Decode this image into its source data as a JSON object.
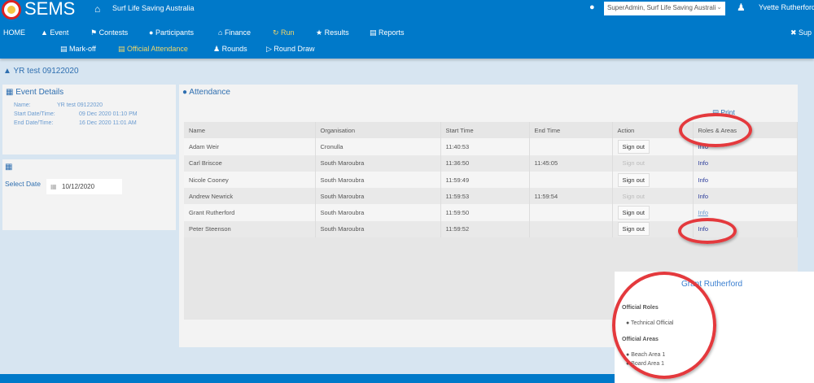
{
  "header": {
    "brand": "SEMS",
    "org": "Surf Life Saving Australia",
    "role_select": "SuperAdmin, Surf Life Saving Australi",
    "user": "Yvette Rutherford",
    "super": "Sup"
  },
  "nav": [
    {
      "label": "HOME"
    },
    {
      "label": "Event"
    },
    {
      "label": "Contests"
    },
    {
      "label": "Participants"
    },
    {
      "label": "Finance"
    },
    {
      "label": "Run"
    },
    {
      "label": "Results"
    },
    {
      "label": "Reports"
    }
  ],
  "subnav": [
    {
      "label": "Mark-off"
    },
    {
      "label": "Official Attendance"
    },
    {
      "label": "Rounds"
    },
    {
      "label": "Round Draw"
    }
  ],
  "page_title": "YR test 09122020",
  "event_details": {
    "title": "Event Details",
    "name_label": "Name:",
    "name": "YR test 09122020",
    "start_label": "Start Date/Time:",
    "start": "09 Dec 2020 01:10 PM",
    "end_label": "End Date/Time:",
    "end": "16 Dec 2020 11:01 AM"
  },
  "date_panel": {
    "label": "Select Date",
    "value": "10/12/2020"
  },
  "attendance": {
    "title": "Attendance",
    "print": "Print",
    "columns": [
      "Name",
      "Organisation",
      "Start Time",
      "End Time",
      "Action",
      "Roles & Areas"
    ],
    "rows": [
      {
        "name": "Adam Weir",
        "org": "Cronulla",
        "start": "11:40:53",
        "end": "",
        "action": "Sign out",
        "info": "Info"
      },
      {
        "name": "Carl Briscoe",
        "org": "South Maroubra",
        "start": "11:36:50",
        "end": "11:45:05",
        "action": "Sign out",
        "info": "Info"
      },
      {
        "name": "Nicole Cooney",
        "org": "South Maroubra",
        "start": "11:59:49",
        "end": "",
        "action": "Sign out",
        "info": "Info"
      },
      {
        "name": "Andrew Newrick",
        "org": "South Maroubra",
        "start": "11:59:53",
        "end": "11:59:54",
        "action": "Sign out",
        "info": "Info"
      },
      {
        "name": "Grant Rutherford",
        "org": "South Maroubra",
        "start": "11:59:50",
        "end": "",
        "action": "Sign out",
        "info": "Info"
      },
      {
        "name": "Peter Steenson",
        "org": "South Maroubra",
        "start": "11:59:52",
        "end": "",
        "action": "Sign out",
        "info": "Info"
      }
    ]
  },
  "popup": {
    "name": "Grant Rutherford",
    "roles_title": "Official Roles",
    "roles": [
      "Technical Official"
    ],
    "areas_title": "Official Areas",
    "areas": [
      "Beach Area 1",
      "Board Area 1"
    ]
  }
}
